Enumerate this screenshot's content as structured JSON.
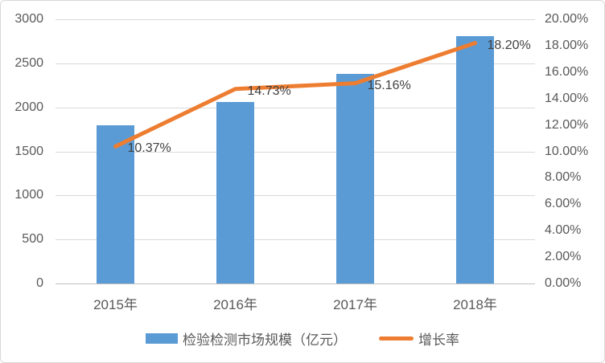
{
  "chart_data": {
    "type": "bar+line combo",
    "categories": [
      "2015年",
      "2016年",
      "2017年",
      "2018年"
    ],
    "series": [
      {
        "name": "检验检测市场规模（亿元）",
        "type": "bar",
        "axis": "left",
        "values": [
          1800,
          2065,
          2377,
          2810
        ],
        "color": "#5B9BD5"
      },
      {
        "name": "增长率",
        "type": "line",
        "axis": "right",
        "values": [
          10.37,
          14.73,
          15.16,
          18.2
        ],
        "point_labels": [
          "10.37%",
          "14.73%",
          "15.16%",
          "18.20%"
        ],
        "color": "#ED7D31"
      }
    ],
    "left_axis": {
      "min": 0,
      "max": 3000,
      "step": 500,
      "ticks_top_to_bottom": [
        "3000",
        "2500",
        "2000",
        "1500",
        "1000",
        "500",
        "0"
      ]
    },
    "right_axis": {
      "min": 0,
      "max": 20,
      "step": 2,
      "ticks_top_to_bottom": [
        "20.00%",
        "18.00%",
        "16.00%",
        "14.00%",
        "12.00%",
        "10.00%",
        "8.00%",
        "6.00%",
        "4.00%",
        "2.00%",
        "0.00%"
      ]
    },
    "legend": [
      {
        "label": "检验检测市场规模（亿元）",
        "marker": "bar",
        "color": "#5B9BD5"
      },
      {
        "label": "增长率",
        "marker": "line",
        "color": "#ED7D31"
      }
    ],
    "grid": true,
    "legend_position": "bottom",
    "colors": {
      "grid": "#D9D9D9",
      "axis_line": "#BFBFBF",
      "tick_text": "#595959",
      "data_label_text": "#404040",
      "background": "#FFFFFF"
    }
  }
}
